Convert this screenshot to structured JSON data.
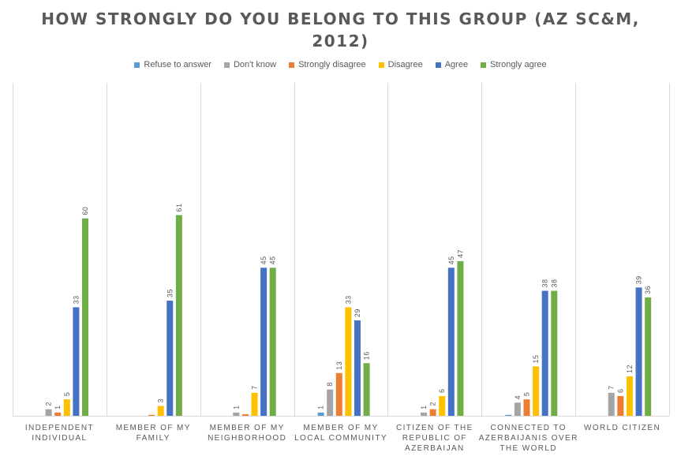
{
  "chart_data": {
    "type": "bar",
    "title_line1": "HOW STRONGLY DO YOU BELONG TO THIS GROUP (AZ SC&M,",
    "title_line2": "2012)",
    "categories": [
      [
        "INDEPENDENT",
        "INDIVIDUAL"
      ],
      [
        "MEMBER OF MY",
        "FAMILY"
      ],
      [
        "MEMBER OF MY",
        "NEIGHBORHOOD"
      ],
      [
        "MEMBER OF MY",
        "LOCAL COMMUNITY"
      ],
      [
        "CITIZEN OF THE",
        "REPUBLIC OF",
        "AZERBAIJAN"
      ],
      [
        "CONNECTED TO",
        "AZERBAIJANIS OVER",
        "THE WORLD"
      ],
      [
        "WORLD CITIZEN"
      ]
    ],
    "series": [
      {
        "name": "Refuse to answer",
        "color": "#5B9BD5",
        "values": [
          0,
          0,
          0,
          1,
          0,
          0.3,
          0
        ],
        "labels": [
          "",
          "",
          "",
          "1",
          "",
          "",
          ""
        ]
      },
      {
        "name": "Don't know",
        "color": "#A5A5A5",
        "values": [
          2,
          0,
          1,
          8,
          1,
          4,
          7
        ],
        "labels": [
          "2",
          "",
          "1",
          "8",
          "1",
          "4",
          "7"
        ]
      },
      {
        "name": "Strongly disagree",
        "color": "#ED7D31",
        "values": [
          1,
          0.3,
          0.5,
          13,
          2,
          5,
          6
        ],
        "labels": [
          "1",
          "",
          "",
          "13",
          "2",
          "5",
          "6"
        ]
      },
      {
        "name": "Disagree",
        "color": "#FFC000",
        "values": [
          5,
          3,
          7,
          33,
          6,
          15,
          12
        ],
        "labels": [
          "5",
          "3",
          "7",
          "33",
          "6",
          "15",
          "12"
        ]
      },
      {
        "name": "Agree",
        "color": "#4472C4",
        "values": [
          33,
          35,
          45,
          29,
          45,
          38,
          39
        ],
        "labels": [
          "33",
          "35",
          "45",
          "29",
          "45",
          "38",
          "39"
        ]
      },
      {
        "name": "Strongly agree",
        "color": "#70AD47",
        "values": [
          60,
          61,
          45,
          16,
          47,
          38,
          36
        ],
        "labels": [
          "60",
          "61",
          "45",
          "16",
          "47",
          "38",
          "36"
        ]
      }
    ],
    "ylim": [
      0,
      61
    ],
    "grid": "vertical separators",
    "legend": "top-center"
  }
}
